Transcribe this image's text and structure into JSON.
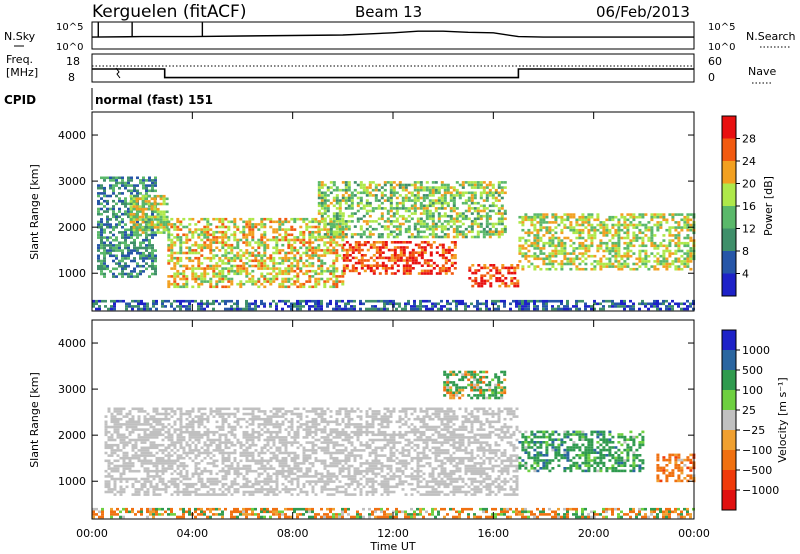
{
  "header": {
    "station": "Kerguelen (fitACF)",
    "beam": "Beam 13",
    "date": "06/Feb/2013"
  },
  "nsky_panel": {
    "left_label": "N.Sky",
    "right_label": "N.Search",
    "left_ticks": [
      "10^5",
      "10^0"
    ],
    "right_ticks": [
      "10^5",
      "10^0"
    ]
  },
  "freq_panel": {
    "left_label_1": "Freq.",
    "left_label_2": "[MHz]",
    "right_label": "Nave",
    "left_ticks": [
      "18",
      "8"
    ],
    "right_ticks": [
      "60",
      "0"
    ]
  },
  "cpid": {
    "label": "CPID",
    "value": "normal (fast) 151"
  },
  "xaxis": {
    "title": "Time UT",
    "ticks": [
      "00:00",
      "04:00",
      "08:00",
      "12:00",
      "16:00",
      "20:00",
      "00:00"
    ]
  },
  "power_colorbar": {
    "title": "Power [dB]",
    "labels": [
      "28",
      "24",
      "20",
      "16",
      "12",
      "8",
      "4"
    ]
  },
  "velocity_colorbar": {
    "title": "Velocity [m s⁻¹]",
    "labels": [
      "1000",
      "500",
      "100",
      "25",
      "−25",
      "−100",
      "−500",
      "−1000"
    ]
  },
  "colors": {
    "power_scale": [
      "#1e22c8",
      "#2656a8",
      "#3f8f6a",
      "#5ab86a",
      "#aee84a",
      "#f2a020",
      "#f25a10",
      "#e81010"
    ],
    "velocity_scale": [
      "#1e22c8",
      "#2a66a0",
      "#2f9a4e",
      "#6ed040",
      "#c0c0c0",
      "#f0a030",
      "#f07010",
      "#f03a0a",
      "#e01010"
    ]
  },
  "chart_data": [
    {
      "type": "heatmap",
      "title": "Power",
      "xlabel": "Time UT",
      "ylabel": "Slant Range [km]",
      "x_range_hours": [
        0,
        24
      ],
      "ylim": [
        180,
        4500
      ],
      "yticks": [
        1000,
        2000,
        3000,
        4000
      ],
      "colorbar_range_db": [
        0,
        32
      ],
      "echo_regions": [
        {
          "t_start": 0.0,
          "t_end": 24.0,
          "range_from_km": 200,
          "range_to_km": 420,
          "power_db": 6
        },
        {
          "t_start": 0.2,
          "t_end": 2.5,
          "range_from_km": 900,
          "range_to_km": 3100,
          "power_db": 10
        },
        {
          "t_start": 1.5,
          "t_end": 3.0,
          "range_from_km": 1900,
          "range_to_km": 2700,
          "power_db": 18
        },
        {
          "t_start": 3.0,
          "t_end": 10.0,
          "range_from_km": 700,
          "range_to_km": 2200,
          "power_db": 20
        },
        {
          "t_start": 10.0,
          "t_end": 14.5,
          "range_from_km": 1000,
          "range_to_km": 1700,
          "power_db": 28
        },
        {
          "t_start": 9.0,
          "t_end": 16.5,
          "range_from_km": 1800,
          "range_to_km": 3000,
          "power_db": 16
        },
        {
          "t_start": 15.0,
          "t_end": 17.0,
          "range_from_km": 700,
          "range_to_km": 1200,
          "power_db": 29
        },
        {
          "t_start": 17.0,
          "t_end": 24.0,
          "range_from_km": 1100,
          "range_to_km": 2300,
          "power_db": 18
        }
      ]
    },
    {
      "type": "heatmap",
      "title": "Velocity",
      "xlabel": "Time UT",
      "ylabel": "Slant Range [km]",
      "x_range_hours": [
        0,
        24
      ],
      "ylim": [
        180,
        4500
      ],
      "yticks": [
        1000,
        2000,
        3000,
        4000
      ],
      "colorbar_range_ms": [
        -1000,
        1000
      ],
      "echo_regions": [
        {
          "t_start": 0.0,
          "t_end": 24.0,
          "range_from_km": 200,
          "range_to_km": 420,
          "velocity_ms": -80
        },
        {
          "t_start": 0.5,
          "t_end": 17.0,
          "range_from_km": 700,
          "range_to_km": 2600,
          "velocity_ms": 0
        },
        {
          "t_start": 14.0,
          "t_end": 16.5,
          "range_from_km": 2800,
          "range_to_km": 3400,
          "velocity_ms": 120
        },
        {
          "t_start": 17.0,
          "t_end": 22.0,
          "range_from_km": 1200,
          "range_to_km": 2100,
          "velocity_ms": 300
        },
        {
          "t_start": 22.5,
          "t_end": 24.0,
          "range_from_km": 1000,
          "range_to_km": 1600,
          "velocity_ms": -300
        }
      ]
    }
  ],
  "nsky_series": {
    "x_hours": [
      0,
      2,
      4,
      6,
      8,
      10,
      11,
      12,
      13,
      14,
      15,
      16,
      17,
      18,
      20,
      22,
      24
    ],
    "log10_values": [
      2.2,
      2.3,
      2.3,
      2.4,
      2.5,
      2.6,
      2.8,
      3.0,
      3.3,
      3.3,
      3.1,
      3.0,
      2.3,
      2.2,
      2.2,
      2.2,
      2.2
    ]
  },
  "freq_series": {
    "x_hours": [
      0,
      2.9,
      2.9,
      17.0,
      17.0,
      24
    ],
    "freq_mhz": [
      13.0,
      13.0,
      9.7,
      9.7,
      13.0,
      13.0
    ]
  }
}
